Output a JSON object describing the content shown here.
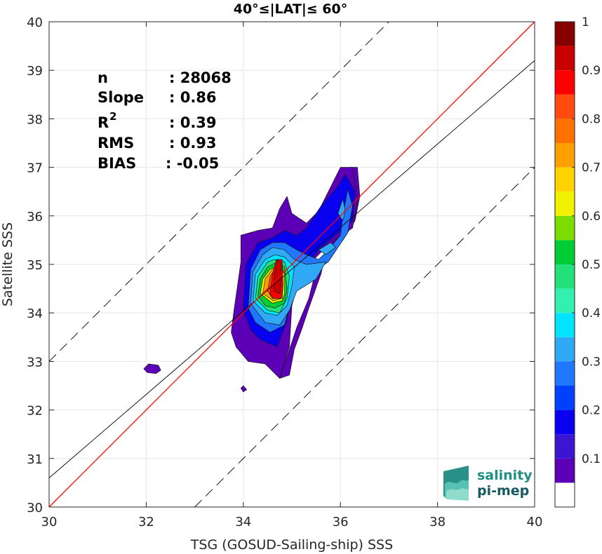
{
  "chart_data": {
    "type": "heatmap",
    "title": "40°≤|LAT|≤ 60°",
    "xlabel": "TSG (GOSUD-Sailing-ship) SSS",
    "ylabel": "Satellite SSS",
    "xlim": [
      30,
      40
    ],
    "ylim": [
      30,
      40
    ],
    "xticks": [
      "30",
      "32",
      "34",
      "36",
      "38",
      "40"
    ],
    "yticks": [
      "30",
      "31",
      "32",
      "33",
      "34",
      "35",
      "36",
      "37",
      "38",
      "39",
      "40"
    ],
    "grid": true,
    "stats": {
      "n_label": "n",
      "n_value": ": 28068",
      "slope_label": "Slope",
      "slope_value": ": 0.86",
      "r2_label": "R",
      "r2_sup": "2",
      "r2_value": ": 0.39",
      "rms_label": "RMS",
      "rms_value": ": 0.93",
      "bias_label": "BIAS",
      "bias_value": ": -0.05"
    },
    "lines": {
      "one_to_one": {
        "slope": 1,
        "intercept": 0,
        "color": "#ff0000"
      },
      "regression": {
        "slope": 0.86,
        "intercept": 4.8,
        "color": "#000000"
      },
      "upper_bound": {
        "slope": 1,
        "intercept": 3,
        "style": "dashed"
      },
      "lower_bound": {
        "slope": 1,
        "intercept": -3,
        "style": "dashed"
      }
    },
    "colorbar": {
      "range": [
        0,
        1
      ],
      "ticks": [
        "0.1",
        "0.2",
        "0.3",
        "0.4",
        "0.5",
        "0.6",
        "0.7",
        "0.8",
        "0.9",
        "1"
      ],
      "levels": [
        {
          "from": 0.0,
          "to": 0.05,
          "color": "#ffffff"
        },
        {
          "from": 0.05,
          "to": 0.1,
          "color": "#5c00b8"
        },
        {
          "from": 0.1,
          "to": 0.15,
          "color": "#3a16d2"
        },
        {
          "from": 0.15,
          "to": 0.2,
          "color": "#0a00f0"
        },
        {
          "from": 0.2,
          "to": 0.25,
          "color": "#0040ff"
        },
        {
          "from": 0.25,
          "to": 0.3,
          "color": "#1f78ff"
        },
        {
          "from": 0.3,
          "to": 0.35,
          "color": "#2fa8f5"
        },
        {
          "from": 0.35,
          "to": 0.4,
          "color": "#00e4ff"
        },
        {
          "from": 0.4,
          "to": 0.45,
          "color": "#33f0b0"
        },
        {
          "from": 0.45,
          "to": 0.5,
          "color": "#22e07a"
        },
        {
          "from": 0.5,
          "to": 0.55,
          "color": "#00cc33"
        },
        {
          "from": 0.55,
          "to": 0.6,
          "color": "#7ddc00"
        },
        {
          "from": 0.6,
          "to": 0.65,
          "color": "#f2f200"
        },
        {
          "from": 0.65,
          "to": 0.7,
          "color": "#ffd200"
        },
        {
          "from": 0.7,
          "to": 0.75,
          "color": "#ffa000"
        },
        {
          "from": 0.75,
          "to": 0.8,
          "color": "#ff7200"
        },
        {
          "from": 0.8,
          "to": 0.85,
          "color": "#ff4a10"
        },
        {
          "from": 0.85,
          "to": 0.9,
          "color": "#ff0000"
        },
        {
          "from": 0.9,
          "to": 0.95,
          "color": "#c80000"
        },
        {
          "from": 0.95,
          "to": 1.0,
          "color": "#860000"
        }
      ]
    },
    "contours": [
      {
        "level": 0.05,
        "color": "#5c00b8",
        "points": [
          [
            34.75,
            32.65
          ],
          [
            34.95,
            32.72
          ],
          [
            35.05,
            33.25
          ],
          [
            35.2,
            33.65
          ],
          [
            35.35,
            34.1
          ],
          [
            35.6,
            34.8
          ],
          [
            35.75,
            35.5
          ],
          [
            36.0,
            36.0
          ],
          [
            36.05,
            36.55
          ],
          [
            36.2,
            37.0
          ],
          [
            36.35,
            37.0
          ],
          [
            36.4,
            36.4
          ],
          [
            36.3,
            35.9
          ],
          [
            36.05,
            35.5
          ],
          [
            35.8,
            35.2
          ],
          [
            35.5,
            34.9
          ],
          [
            35.35,
            34.3
          ],
          [
            35.1,
            33.7
          ],
          [
            34.9,
            33.1
          ]
        ]
      },
      {
        "level": 0.05,
        "color": "#5c00b8",
        "points": [
          [
            33.8,
            34.0
          ],
          [
            33.95,
            35.05
          ],
          [
            33.95,
            35.6
          ],
          [
            34.3,
            35.7
          ],
          [
            34.6,
            35.75
          ],
          [
            34.75,
            36.15
          ],
          [
            34.9,
            36.4
          ],
          [
            35.0,
            36.05
          ],
          [
            35.3,
            35.85
          ],
          [
            35.55,
            36.1
          ],
          [
            35.8,
            36.6
          ],
          [
            36.0,
            37.0
          ],
          [
            36.25,
            37.0
          ],
          [
            36.35,
            36.3
          ],
          [
            36.25,
            35.75
          ],
          [
            35.8,
            35.45
          ],
          [
            35.45,
            35.1
          ],
          [
            35.15,
            34.7
          ],
          [
            35.0,
            34.15
          ],
          [
            34.95,
            33.3
          ],
          [
            34.75,
            32.65
          ],
          [
            34.45,
            32.95
          ],
          [
            34.1,
            33.0
          ],
          [
            33.85,
            33.3
          ],
          [
            33.75,
            33.6
          ]
        ]
      },
      {
        "level": 0.15,
        "color": "#0a00f0",
        "points": [
          [
            34.0,
            34.05
          ],
          [
            34.05,
            35.0
          ],
          [
            34.3,
            35.45
          ],
          [
            34.6,
            35.55
          ],
          [
            34.85,
            35.7
          ],
          [
            35.1,
            35.6
          ],
          [
            35.3,
            35.75
          ],
          [
            35.6,
            36.2
          ],
          [
            35.9,
            36.55
          ],
          [
            36.1,
            36.85
          ],
          [
            36.3,
            36.5
          ],
          [
            36.25,
            35.9
          ],
          [
            35.9,
            35.6
          ],
          [
            35.55,
            35.3
          ],
          [
            35.25,
            34.9
          ],
          [
            35.0,
            34.5
          ],
          [
            34.9,
            33.85
          ],
          [
            34.7,
            33.3
          ],
          [
            34.35,
            33.45
          ],
          [
            34.15,
            33.65
          ]
        ]
      },
      {
        "level": 0.25,
        "color": "#1f78ff",
        "points": [
          [
            34.1,
            34.1
          ],
          [
            34.15,
            34.9
          ],
          [
            34.35,
            35.3
          ],
          [
            34.6,
            35.45
          ],
          [
            34.85,
            35.45
          ],
          [
            35.1,
            35.3
          ],
          [
            35.3,
            35.2
          ],
          [
            35.55,
            35.1
          ],
          [
            35.75,
            35.3
          ],
          [
            36.0,
            35.6
          ],
          [
            36.05,
            36.0
          ],
          [
            36.15,
            36.55
          ],
          [
            36.25,
            36.2
          ],
          [
            36.15,
            35.65
          ],
          [
            35.75,
            35.05
          ],
          [
            35.3,
            34.75
          ],
          [
            35.0,
            34.35
          ],
          [
            34.85,
            33.75
          ],
          [
            34.55,
            33.6
          ],
          [
            34.25,
            33.8
          ]
        ]
      },
      {
        "level": 0.35,
        "color": "#2fa8f5",
        "points": [
          [
            34.15,
            34.2
          ],
          [
            34.2,
            34.85
          ],
          [
            34.4,
            35.2
          ],
          [
            34.6,
            35.35
          ],
          [
            34.85,
            35.3
          ],
          [
            35.05,
            35.1
          ],
          [
            35.3,
            35.0
          ],
          [
            35.7,
            35.05
          ],
          [
            35.5,
            34.7
          ],
          [
            35.1,
            34.45
          ],
          [
            34.95,
            34.05
          ],
          [
            34.75,
            33.75
          ],
          [
            34.45,
            33.8
          ]
        ]
      },
      {
        "level": 0.35,
        "color": "#2fa8f5",
        "points": [
          [
            35.95,
            36.05
          ],
          [
            36.05,
            36.35
          ],
          [
            36.1,
            36.1
          ],
          [
            36.05,
            35.9
          ]
        ]
      },
      {
        "level": 0.35,
        "color": "#2fa8f5",
        "points": [
          [
            35.55,
            35.3
          ],
          [
            35.8,
            35.45
          ],
          [
            35.9,
            35.35
          ],
          [
            35.7,
            35.2
          ]
        ]
      },
      {
        "level": 0.4,
        "color": "#00e4ff",
        "points": [
          [
            34.2,
            34.25
          ],
          [
            34.25,
            34.8
          ],
          [
            34.45,
            35.1
          ],
          [
            34.65,
            35.2
          ],
          [
            34.85,
            35.15
          ],
          [
            35.05,
            34.95
          ],
          [
            35.0,
            34.55
          ],
          [
            34.9,
            34.15
          ],
          [
            34.7,
            33.95
          ],
          [
            34.45,
            34.0
          ]
        ]
      },
      {
        "level": 0.45,
        "color": "#22e07a",
        "points": [
          [
            34.25,
            34.3
          ],
          [
            34.3,
            34.75
          ],
          [
            34.5,
            35.05
          ],
          [
            34.65,
            35.1
          ],
          [
            34.85,
            35.05
          ],
          [
            34.95,
            34.75
          ],
          [
            34.9,
            34.3
          ],
          [
            34.75,
            34.0
          ],
          [
            34.5,
            34.05
          ]
        ]
      },
      {
        "level": 0.55,
        "color": "#00cc33",
        "points": [
          [
            34.3,
            34.35
          ],
          [
            34.35,
            34.7
          ],
          [
            34.5,
            34.95
          ],
          [
            34.7,
            35.05
          ],
          [
            34.85,
            34.95
          ],
          [
            34.9,
            34.5
          ],
          [
            34.85,
            34.2
          ],
          [
            34.65,
            34.1
          ],
          [
            34.45,
            34.15
          ]
        ]
      },
      {
        "level": 0.6,
        "color": "#f2f200",
        "points": [
          [
            34.35,
            34.4
          ],
          [
            34.4,
            34.7
          ],
          [
            34.55,
            34.9
          ],
          [
            34.75,
            35.0
          ],
          [
            34.85,
            34.8
          ],
          [
            34.85,
            34.4
          ],
          [
            34.8,
            34.25
          ],
          [
            34.6,
            34.2
          ]
        ]
      },
      {
        "level": 0.7,
        "color": "#ffa000",
        "points": [
          [
            34.4,
            34.4
          ],
          [
            34.45,
            34.7
          ],
          [
            34.6,
            34.9
          ],
          [
            34.78,
            34.95
          ],
          [
            34.82,
            34.6
          ],
          [
            34.8,
            34.3
          ],
          [
            34.62,
            34.25
          ]
        ]
      },
      {
        "level": 0.8,
        "color": "#ff4a10",
        "points": [
          [
            34.5,
            34.45
          ],
          [
            34.55,
            34.75
          ],
          [
            34.65,
            34.9
          ],
          [
            34.78,
            34.9
          ],
          [
            34.8,
            34.5
          ],
          [
            34.75,
            34.3
          ],
          [
            34.6,
            34.3
          ]
        ]
      },
      {
        "level": 0.85,
        "color": "#ff0000",
        "points": [
          [
            34.55,
            34.4
          ],
          [
            34.6,
            34.8
          ],
          [
            34.68,
            35.1
          ],
          [
            34.8,
            35.1
          ],
          [
            34.82,
            34.6
          ],
          [
            34.78,
            34.3
          ],
          [
            34.62,
            34.3
          ]
        ]
      },
      {
        "level": 0.95,
        "color": "#c80000",
        "points": [
          [
            34.62,
            34.45
          ],
          [
            34.65,
            34.85
          ],
          [
            34.7,
            35.1
          ],
          [
            34.78,
            35.05
          ],
          [
            34.78,
            34.6
          ],
          [
            34.75,
            34.4
          ]
        ]
      },
      {
        "level": 0.05,
        "color": "#5c00b8",
        "points": [
          [
            31.95,
            32.85
          ],
          [
            32.05,
            32.95
          ],
          [
            32.25,
            32.92
          ],
          [
            32.3,
            32.82
          ],
          [
            32.2,
            32.75
          ],
          [
            32.02,
            32.77
          ]
        ]
      },
      {
        "level": 0.05,
        "color": "#5c00b8",
        "points": [
          [
            33.95,
            32.45
          ],
          [
            34.0,
            32.5
          ],
          [
            34.07,
            32.42
          ],
          [
            34.0,
            32.37
          ]
        ]
      }
    ]
  },
  "logo": {
    "line1": "salinity",
    "line2": "pi-mep"
  }
}
